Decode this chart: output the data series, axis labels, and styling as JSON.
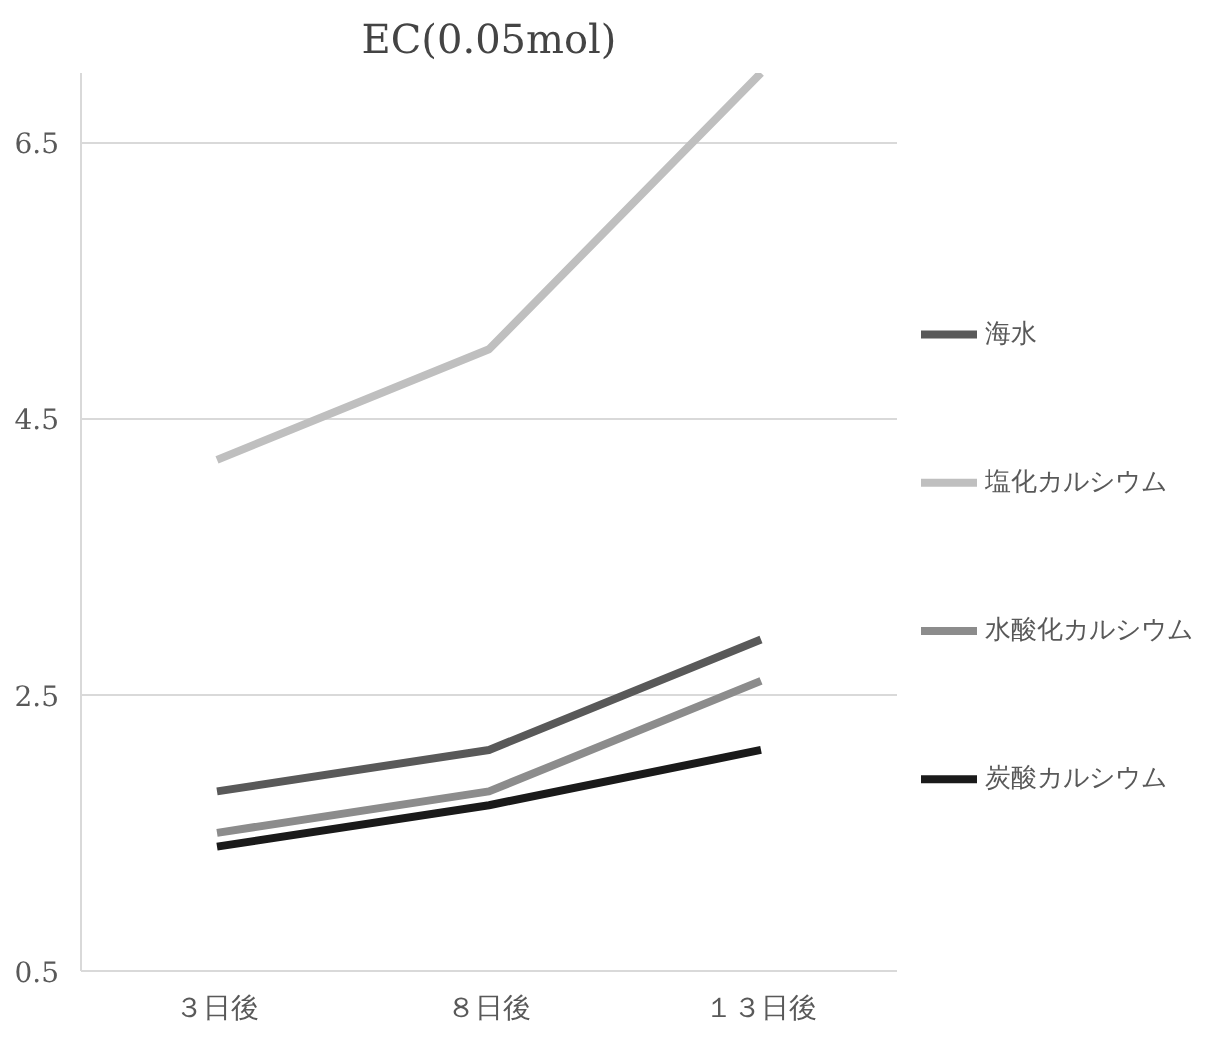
{
  "chart_data": {
    "type": "line",
    "title": "EC(0.05mol)",
    "categories": [
      "３日後",
      "８日後",
      "１３日後"
    ],
    "series": [
      {
        "name": "海水",
        "color": "#595959",
        "values": [
          1.8,
          2.1,
          2.9
        ]
      },
      {
        "name": "塩化カルシウム",
        "color": "#bfbfbf",
        "values": [
          4.2,
          5.0,
          7.0
        ]
      },
      {
        "name": "水酸化カルシウム",
        "color": "#8c8c8c",
        "values": [
          1.5,
          1.8,
          2.6
        ]
      },
      {
        "name": "炭酸カルシウム",
        "color": "#1a1a1a",
        "values": [
          1.4,
          1.7,
          2.1
        ]
      }
    ],
    "ylim": [
      0.5,
      7
    ],
    "yticks": [
      0.5,
      2.5,
      4.5,
      6.5
    ],
    "grid": "y",
    "legend": "right",
    "marker": "none",
    "line_style": "solid"
  }
}
